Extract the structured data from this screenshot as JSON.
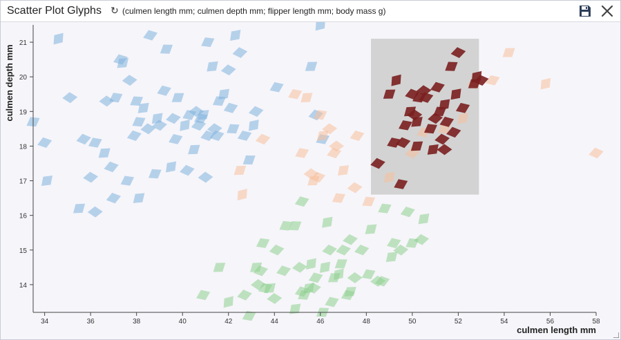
{
  "window": {
    "title": "Scatter Plot Glyphs",
    "subtitle": "(culmen length mm; culmen depth mm; flipper length mm; body mass g)",
    "refresh_icon": "refresh-icon",
    "save_icon": "save-icon",
    "close_icon": "close-icon"
  },
  "chart_data": {
    "type": "scatter",
    "title": "",
    "xlabel": "culmen length mm",
    "ylabel": "culmen depth mm",
    "xlim": [
      33.5,
      58
    ],
    "ylim": [
      13.2,
      21.5
    ],
    "xticks": [
      34,
      36,
      38,
      40,
      42,
      44,
      46,
      48,
      50,
      52,
      54,
      56,
      58
    ],
    "yticks": [
      14,
      15,
      16,
      17,
      18,
      19,
      20,
      21
    ],
    "grid": false,
    "legend": "none",
    "marker": "diamond",
    "selection_box": {
      "x": [
        48.2,
        52.9
      ],
      "y": [
        16.6,
        21.1
      ],
      "color": "#d3d3d3"
    },
    "series": [
      {
        "color": "#7fb2dc",
        "points": [
          [
            34.6,
            21.1
          ],
          [
            35.7,
            18.2
          ],
          [
            36.2,
            18.1
          ],
          [
            36.6,
            17.8
          ],
          [
            36.7,
            19.3
          ],
          [
            36.9,
            17.4
          ],
          [
            37.1,
            19.4
          ],
          [
            37.4,
            20.4
          ],
          [
            37.7,
            19.9
          ],
          [
            37.9,
            18.3
          ],
          [
            38.1,
            18.7
          ],
          [
            38.3,
            19.1
          ],
          [
            38.5,
            18.5
          ],
          [
            38.6,
            21.2
          ],
          [
            38.8,
            17.2
          ],
          [
            38.9,
            18.8
          ],
          [
            39.0,
            18.6
          ],
          [
            39.2,
            19.6
          ],
          [
            39.3,
            20.8
          ],
          [
            39.5,
            17.4
          ],
          [
            39.6,
            18.8
          ],
          [
            39.7,
            18.2
          ],
          [
            39.8,
            19.4
          ],
          [
            40.1,
            18.6
          ],
          [
            40.2,
            17.3
          ],
          [
            40.3,
            18.9
          ],
          [
            40.5,
            17.9
          ],
          [
            40.6,
            19.0
          ],
          [
            40.7,
            18.6
          ],
          [
            40.8,
            18.8
          ],
          [
            40.9,
            18.9
          ],
          [
            41.0,
            17.1
          ],
          [
            41.1,
            18.3
          ],
          [
            41.1,
            21.0
          ],
          [
            41.3,
            20.3
          ],
          [
            41.4,
            18.5
          ],
          [
            41.5,
            18.3
          ],
          [
            41.6,
            19.3
          ],
          [
            41.8,
            19.5
          ],
          [
            42.0,
            20.2
          ],
          [
            42.1,
            19.1
          ],
          [
            42.2,
            18.5
          ],
          [
            42.3,
            21.2
          ],
          [
            42.5,
            20.7
          ],
          [
            42.7,
            18.3
          ],
          [
            42.9,
            17.6
          ],
          [
            43.1,
            18.6
          ],
          [
            43.2,
            19.0
          ],
          [
            44.1,
            19.7
          ],
          [
            45.6,
            20.3
          ],
          [
            46.0,
            21.5
          ],
          [
            45.8,
            18.9
          ],
          [
            46.1,
            18.2
          ],
          [
            35.5,
            16.2
          ],
          [
            36.2,
            16.1
          ],
          [
            37.0,
            16.5
          ],
          [
            37.6,
            17.0
          ],
          [
            38.1,
            16.5
          ],
          [
            35.1,
            19.4
          ],
          [
            34.0,
            18.1
          ],
          [
            33.5,
            18.7
          ],
          [
            34.1,
            17.0
          ],
          [
            36.0,
            17.1
          ],
          [
            37.3,
            20.5
          ],
          [
            38.0,
            19.3
          ]
        ]
      },
      {
        "color": "#f7c09a",
        "points": [
          [
            42.5,
            17.3
          ],
          [
            42.6,
            16.6
          ],
          [
            43.5,
            18.2
          ],
          [
            45.2,
            17.8
          ],
          [
            45.4,
            19.4
          ],
          [
            45.6,
            17.2
          ],
          [
            45.9,
            17.1
          ],
          [
            46.0,
            18.9
          ],
          [
            46.1,
            18.3
          ],
          [
            46.4,
            18.5
          ],
          [
            46.6,
            17.8
          ],
          [
            46.8,
            16.5
          ],
          [
            47.0,
            17.3
          ],
          [
            47.5,
            16.8
          ],
          [
            47.6,
            18.3
          ],
          [
            48.1,
            16.4
          ],
          [
            49.0,
            17.1
          ],
          [
            50.0,
            17.8
          ],
          [
            50.5,
            18.4
          ],
          [
            51.4,
            18.5
          ],
          [
            52.2,
            18.8
          ],
          [
            52.7,
            19.8
          ],
          [
            53.5,
            19.9
          ],
          [
            54.2,
            20.7
          ],
          [
            55.8,
            19.8
          ],
          [
            58.0,
            17.8
          ],
          [
            44.9,
            19.5
          ],
          [
            45.7,
            17.0
          ],
          [
            46.7,
            18.0
          ]
        ]
      },
      {
        "color": "#8ecf8e",
        "points": [
          [
            40.9,
            13.7
          ],
          [
            41.6,
            14.5
          ],
          [
            42.0,
            13.5
          ],
          [
            42.7,
            13.7
          ],
          [
            42.9,
            13.1
          ],
          [
            43.2,
            14.5
          ],
          [
            43.3,
            14.0
          ],
          [
            43.4,
            14.4
          ],
          [
            43.5,
            15.2
          ],
          [
            43.8,
            13.9
          ],
          [
            44.0,
            13.6
          ],
          [
            44.4,
            14.4
          ],
          [
            44.5,
            15.7
          ],
          [
            44.9,
            13.3
          ],
          [
            45.1,
            14.5
          ],
          [
            45.2,
            13.8
          ],
          [
            45.3,
            13.7
          ],
          [
            45.5,
            13.9
          ],
          [
            45.7,
            13.9
          ],
          [
            45.8,
            14.2
          ],
          [
            46.1,
            13.2
          ],
          [
            46.2,
            14.5
          ],
          [
            46.4,
            15.0
          ],
          [
            46.5,
            13.5
          ],
          [
            46.6,
            14.2
          ],
          [
            46.8,
            14.3
          ],
          [
            47.0,
            15.0
          ],
          [
            47.2,
            13.7
          ],
          [
            47.3,
            13.8
          ],
          [
            47.5,
            14.2
          ],
          [
            47.8,
            15.0
          ],
          [
            48.1,
            14.3
          ],
          [
            48.2,
            15.6
          ],
          [
            48.5,
            14.1
          ],
          [
            48.7,
            14.1
          ],
          [
            48.8,
            16.2
          ],
          [
            49.1,
            14.8
          ],
          [
            49.5,
            15.0
          ],
          [
            49.8,
            16.1
          ],
          [
            50.0,
            15.2
          ],
          [
            50.5,
            15.9
          ],
          [
            50.4,
            15.3
          ],
          [
            45.2,
            16.4
          ],
          [
            44.9,
            15.7
          ],
          [
            46.3,
            15.8
          ],
          [
            47.3,
            15.3
          ],
          [
            49.2,
            15.2
          ],
          [
            46.9,
            14.6
          ],
          [
            45.6,
            14.6
          ],
          [
            44.1,
            15.0
          ],
          [
            43.6,
            13.9
          ]
        ]
      },
      {
        "color": "#7a1f1f",
        "points": [
          [
            48.5,
            17.5
          ],
          [
            49.2,
            18.1
          ],
          [
            49.0,
            19.5
          ],
          [
            49.3,
            19.9
          ],
          [
            49.6,
            18.1
          ],
          [
            49.7,
            18.6
          ],
          [
            49.9,
            19.0
          ],
          [
            50.1,
            18.9
          ],
          [
            50.0,
            19.5
          ],
          [
            50.3,
            19.4
          ],
          [
            50.2,
            18.7
          ],
          [
            50.5,
            19.6
          ],
          [
            50.6,
            19.4
          ],
          [
            50.8,
            18.5
          ],
          [
            50.9,
            17.9
          ],
          [
            51.0,
            18.8
          ],
          [
            51.1,
            19.7
          ],
          [
            51.2,
            19.0
          ],
          [
            51.4,
            19.2
          ],
          [
            51.3,
            18.2
          ],
          [
            51.5,
            18.7
          ],
          [
            51.7,
            20.3
          ],
          [
            51.9,
            19.5
          ],
          [
            52.0,
            20.7
          ],
          [
            52.2,
            19.1
          ],
          [
            52.7,
            19.8
          ],
          [
            52.8,
            20.0
          ],
          [
            53.0,
            19.9
          ],
          [
            49.5,
            16.9
          ],
          [
            50.2,
            18.0
          ],
          [
            51.4,
            17.9
          ],
          [
            51.8,
            18.4
          ]
        ]
      }
    ]
  }
}
